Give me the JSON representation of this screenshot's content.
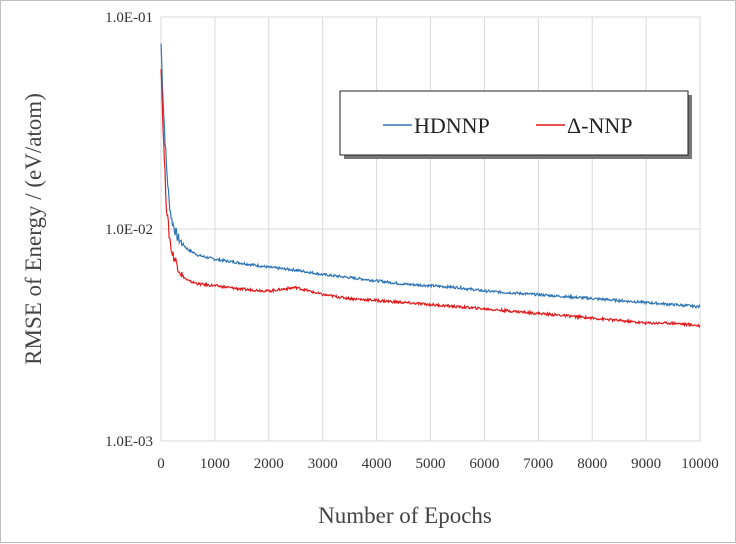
{
  "chart_data": {
    "type": "line",
    "title": "",
    "xlabel": "Number of Epochs",
    "ylabel": "RMSE of Energy / (eV/atom)",
    "xlim": [
      0,
      10000
    ],
    "ylim": [
      0.001,
      0.1
    ],
    "yscale": "log",
    "grid": true,
    "legend_position": "top-right",
    "x_ticks": [
      "0",
      "1000",
      "2000",
      "3000",
      "4000",
      "5000",
      "6000",
      "7000",
      "8000",
      "9000",
      "10000"
    ],
    "y_ticks": [
      "1.0E-03",
      "1.0E-02",
      "1.0E-01"
    ],
    "series": [
      {
        "name": "HDNNP",
        "color": "#2e75b6",
        "x": [
          0,
          50,
          100,
          150,
          200,
          300,
          400,
          500,
          700,
          1000,
          1500,
          2000,
          2500,
          3000,
          3500,
          4000,
          4500,
          5000,
          5500,
          6000,
          6500,
          7000,
          7500,
          8000,
          8500,
          9000,
          9500,
          10000
        ],
        "y": [
          0.075,
          0.035,
          0.02,
          0.0135,
          0.011,
          0.0092,
          0.0085,
          0.008,
          0.0075,
          0.0072,
          0.0069,
          0.0066,
          0.0064,
          0.0061,
          0.0059,
          0.0057,
          0.0055,
          0.0054,
          0.0053,
          0.0051,
          0.005,
          0.0049,
          0.0048,
          0.0047,
          0.0046,
          0.0045,
          0.0044,
          0.0043
        ]
      },
      {
        "name": "Δ-NNP",
        "color": "#e31a1c",
        "x": [
          0,
          50,
          100,
          150,
          200,
          300,
          400,
          500,
          700,
          1000,
          1500,
          2000,
          2500,
          3000,
          3500,
          4000,
          4500,
          5000,
          5500,
          6000,
          6500,
          7000,
          7500,
          8000,
          8500,
          9000,
          9500,
          10000
        ],
        "y": [
          0.06,
          0.025,
          0.013,
          0.0095,
          0.0078,
          0.0068,
          0.006,
          0.0057,
          0.0055,
          0.0054,
          0.0052,
          0.0051,
          0.0053,
          0.0049,
          0.0047,
          0.0046,
          0.0045,
          0.0044,
          0.0043,
          0.0042,
          0.0041,
          0.004,
          0.0039,
          0.0038,
          0.0037,
          0.0036,
          0.0036,
          0.0035
        ]
      }
    ]
  }
}
